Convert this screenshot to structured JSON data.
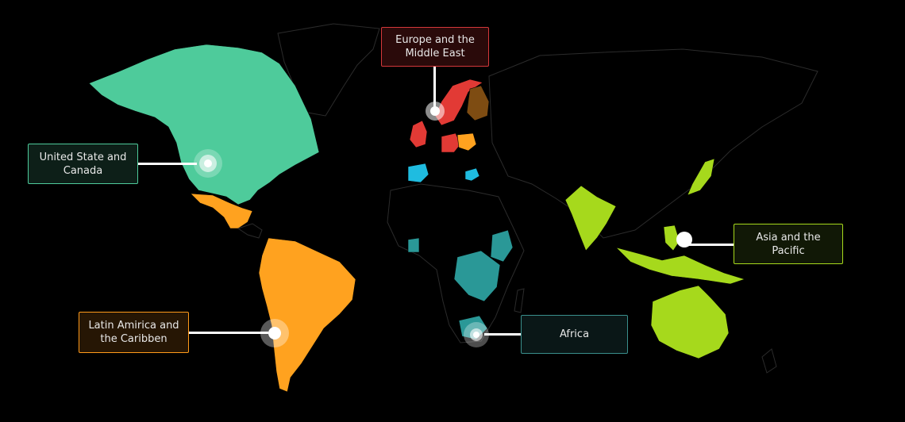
{
  "regions": {
    "na": {
      "label": "United State and\nCanada",
      "color": "#4ecb9b",
      "box_bg": "#0d1f18",
      "box_border": "#4ecb9b"
    },
    "eu": {
      "label": "Europe and the\nMiddle East",
      "color": "#e23a35",
      "box_bg": "#2a0a0a",
      "box_border": "#d4383a"
    },
    "latam": {
      "label": "Latin Amirica and\nthe Caribben",
      "color": "#ffa21f",
      "box_bg": "#261604",
      "box_border": "#ff9a1a"
    },
    "africa": {
      "label": "Africa",
      "color": "#2a9897",
      "box_bg": "#0a1717",
      "box_border": "#3a8f8c"
    },
    "apac": {
      "label": "Asia and the\nPacific",
      "color": "#a6d91c",
      "box_bg": "#111806",
      "box_border": "#a6d91c"
    }
  },
  "colors": {
    "background": "#000000",
    "land": "#000000",
    "borders": "#2b2b2b",
    "europe_brown": "#7e4c12",
    "egypt": "#8a1a12",
    "europe_cyan": "#1fbce0",
    "europe_orange": "#ff9a1a"
  }
}
